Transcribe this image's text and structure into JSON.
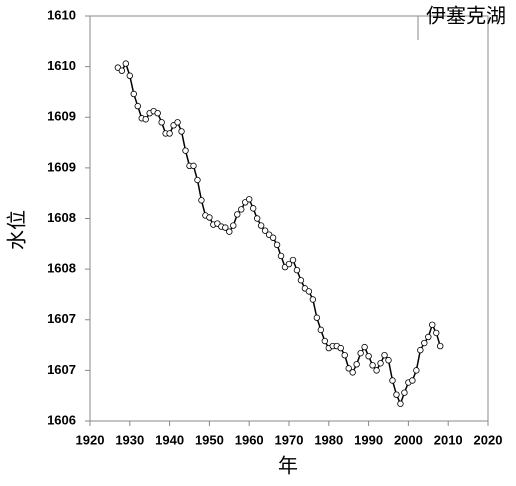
{
  "chart_data": {
    "type": "line",
    "title": "伊塞克湖",
    "x_label": "年",
    "y_label": "水位",
    "x": [
      1927,
      1928,
      1929,
      1930,
      1931,
      1932,
      1933,
      1934,
      1935,
      1936,
      1937,
      1938,
      1939,
      1940,
      1941,
      1942,
      1943,
      1944,
      1945,
      1946,
      1947,
      1948,
      1949,
      1950,
      1951,
      1952,
      1953,
      1954,
      1955,
      1956,
      1957,
      1958,
      1959,
      1960,
      1961,
      1962,
      1963,
      1964,
      1965,
      1966,
      1967,
      1968,
      1969,
      1970,
      1971,
      1972,
      1973,
      1974,
      1975,
      1976,
      1977,
      1978,
      1979,
      1980,
      1981,
      1982,
      1983,
      1984,
      1985,
      1986,
      1987,
      1988,
      1989,
      1990,
      1991,
      1992,
      1993,
      1994,
      1995,
      1996,
      1997,
      1998,
      1999,
      2000,
      2001,
      2002,
      2003,
      2004,
      2005,
      2006,
      2007,
      2008
    ],
    "series": [
      {
        "name": "伊塞克湖",
        "color": "#000000",
        "values": [
          1609.49,
          1609.46,
          1609.53,
          1609.41,
          1609.23,
          1609.11,
          1608.99,
          1608.98,
          1609.04,
          1609.06,
          1609.04,
          1608.95,
          1608.84,
          1608.84,
          1608.92,
          1608.95,
          1608.86,
          1608.67,
          1608.52,
          1608.52,
          1608.38,
          1608.18,
          1608.03,
          1608.01,
          1607.94,
          1607.95,
          1607.92,
          1607.91,
          1607.87,
          1607.93,
          1608.04,
          1608.09,
          1608.16,
          1608.19,
          1608.1,
          1608.0,
          1607.93,
          1607.88,
          1607.84,
          1607.81,
          1607.74,
          1607.63,
          1607.52,
          1607.55,
          1607.59,
          1607.49,
          1607.39,
          1607.31,
          1607.28,
          1607.2,
          1607.02,
          1606.9,
          1606.79,
          1606.72,
          1606.74,
          1606.74,
          1606.72,
          1606.65,
          1606.52,
          1606.48,
          1606.56,
          1606.67,
          1606.73,
          1606.64,
          1606.55,
          1606.5,
          1606.57,
          1606.65,
          1606.6,
          1606.4,
          1606.26,
          1606.17,
          1606.28,
          1606.38,
          1606.4,
          1606.5,
          1606.7,
          1606.77,
          1606.83,
          1606.95,
          1606.87,
          1606.74
        ]
      }
    ],
    "xlim": [
      1920,
      2020
    ],
    "xticks": [
      1920,
      1930,
      1940,
      1950,
      1960,
      1970,
      1980,
      1990,
      2000,
      2010,
      2020
    ],
    "ylim": [
      1606,
      1610
    ],
    "yticks": [
      1606,
      {
        "value": 1606.5,
        "label": "1607"
      },
      1607,
      {
        "value": 1607.5,
        "label": "1608"
      },
      1608,
      {
        "value": 1608.5,
        "label": "1609"
      },
      1609,
      {
        "value": 1609.5,
        "label": "1610"
      },
      1610
    ],
    "grid": false
  }
}
